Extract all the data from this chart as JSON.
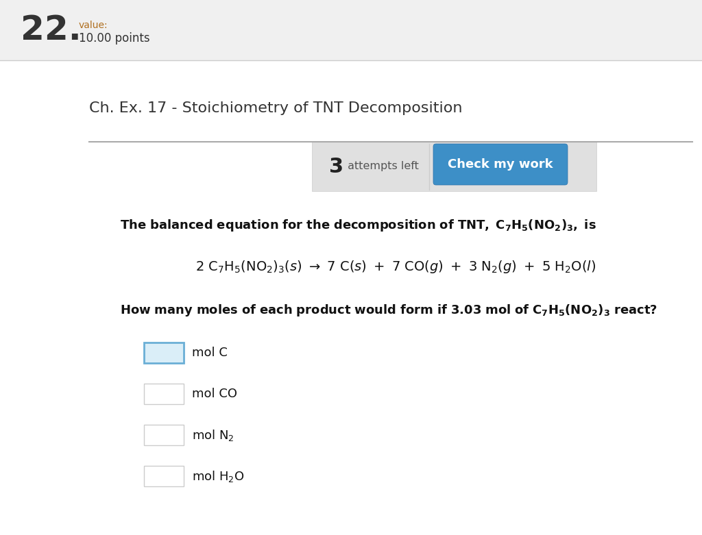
{
  "bg_color": "#ffffff",
  "header_bg": "#f0f0f0",
  "question_number": "22.",
  "value_label": "value:",
  "points_label": "10.00 points",
  "chapter_title": "Ch. Ex. 17 - Stoichiometry of TNT Decomposition",
  "attempts_number": "3",
  "attempts_text": " attempts left",
  "button_text": "Check my work",
  "button_color": "#3d8fc7",
  "button_text_color": "#ffffff",
  "separator_color": "#cccccc",
  "input_box_border_active": "#6aafd6",
  "input_box_face_active": "#daeef8",
  "input_box_border_inactive": "#cccccc",
  "input_box_face_inactive": "#ffffff",
  "panel_bg": "#e0e0e0",
  "panel_border": "#cccccc"
}
